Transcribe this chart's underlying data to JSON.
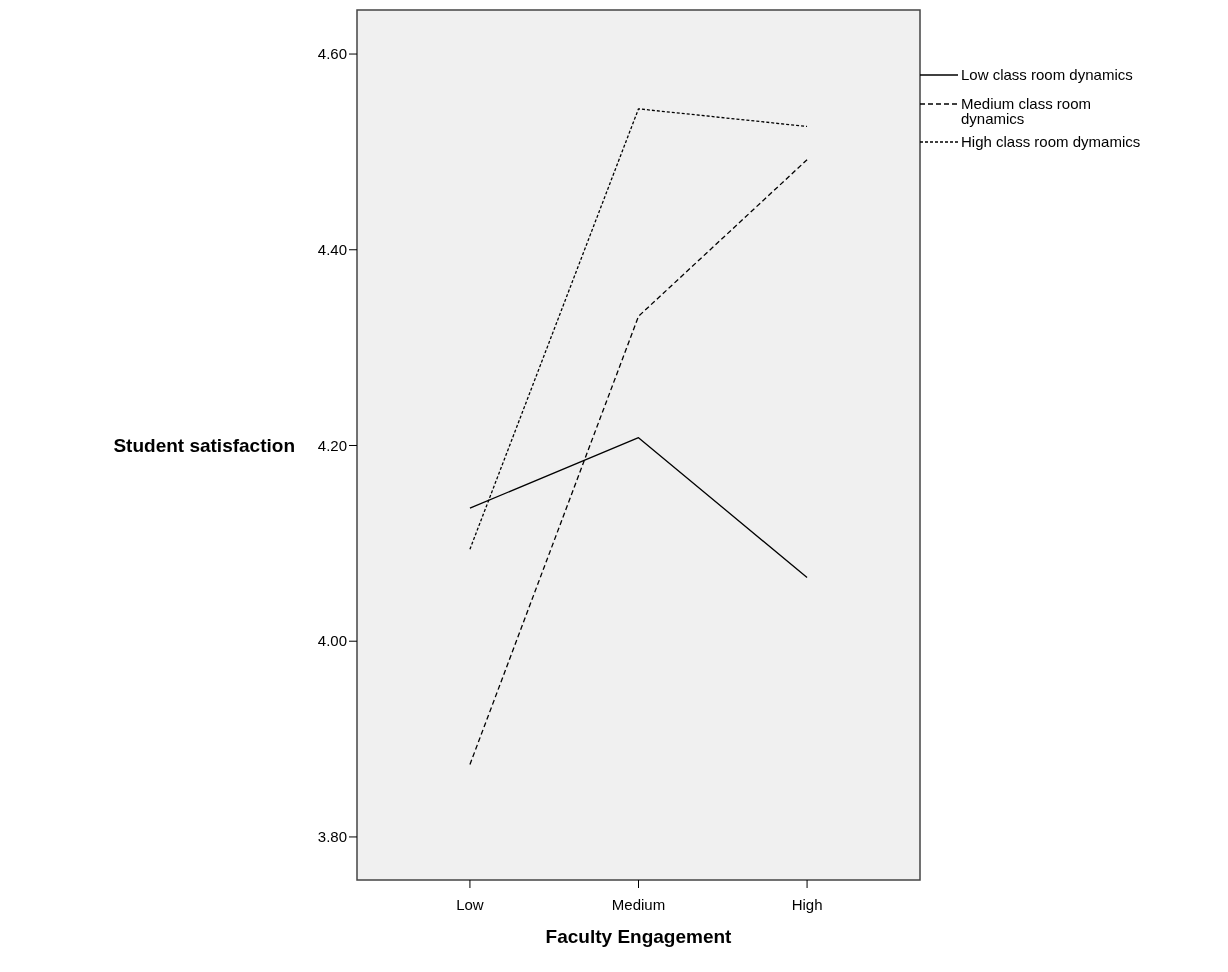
{
  "chart_data": {
    "type": "line",
    "xlabel": "Faculty Engagement",
    "ylabel": "Student satisfaction",
    "categories": [
      "Low",
      "Medium",
      "High"
    ],
    "series": [
      {
        "name": "Low class room dynamics",
        "color": "#000000",
        "line_style": "solid",
        "values": [
          4.136,
          4.208,
          4.065
        ]
      },
      {
        "name": "Medium class room dynamics",
        "color": "#000000",
        "line_style": "dashed",
        "values": [
          3.874,
          4.332,
          4.492
        ]
      },
      {
        "name": "High class room dymamics",
        "color": "#000000",
        "line_style": "dotted",
        "values": [
          4.094,
          4.544,
          4.526
        ]
      }
    ],
    "ylim": [
      3.756,
      4.645
    ],
    "yticks": [
      {
        "value": 3.8,
        "label": "3.80"
      },
      {
        "value": 4.0,
        "label": "4.00"
      },
      {
        "value": 4.2,
        "label": "4.20"
      },
      {
        "value": 4.4,
        "label": "4.40"
      },
      {
        "value": 4.6,
        "label": "4.60"
      }
    ],
    "grid": false,
    "legend": "right",
    "marker": "none"
  }
}
